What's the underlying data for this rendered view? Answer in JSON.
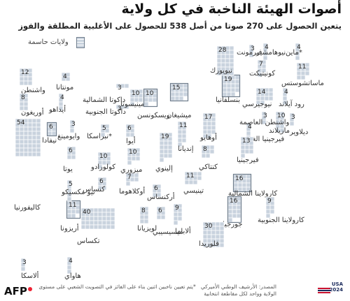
{
  "title": "أصوات الهيئة الناخبة في كل ولاية",
  "subtitle": "يتعين الحصول على 270 صوتا من أصل 538 للحصول على الأغلبية المطلقة والفوز",
  "legend": {
    "swing_label": "ولايات حاسمة"
  },
  "footnote": "*يتم تعيين ناخبين اثنين بناء على الفائز في التصويت الشعبي على مستوى الولاية وواحد لكل مقاطعة انتخابية",
  "source": "المصدر: الأرشيف الوطني الأميركي",
  "credit": "AFP",
  "logo_text": [
    "USA",
    "2024"
  ],
  "colors": {
    "block": "#c9d3de",
    "swing_outline": "#6f7d8c"
  },
  "states": [
    {
      "id": "washington",
      "name": "واشنطن",
      "votes": 12
    },
    {
      "id": "oregon",
      "name": "أوريغون",
      "votes": 8
    },
    {
      "id": "california",
      "name": "كاليفورنيا",
      "votes": 54
    },
    {
      "id": "idaho",
      "name": "أيداهو",
      "votes": 4
    },
    {
      "id": "nevada",
      "name": "نيفادا",
      "votes": 6,
      "swing": true
    },
    {
      "id": "montana",
      "name": "مونتانا",
      "votes": 4
    },
    {
      "id": "wyoming",
      "name": "وايومينغ",
      "votes": 3
    },
    {
      "id": "utah",
      "name": "يوتا",
      "votes": 6
    },
    {
      "id": "arizona",
      "name": "أريزونا",
      "votes": 11,
      "swing": true
    },
    {
      "id": "colorado",
      "name": "كولورادو",
      "votes": 10
    },
    {
      "id": "new_mexico",
      "name": "نيو مكسيكو",
      "votes": 5
    },
    {
      "id": "north_dakota",
      "name": "داكوتا الشمالية",
      "votes": 3
    },
    {
      "id": "south_dakota",
      "name": "داكوتا الجنوبية",
      "votes": 3
    },
    {
      "id": "nebraska",
      "name": "نبراسكا*",
      "votes": 5
    },
    {
      "id": "kansas",
      "name": "كنساس",
      "votes": 6
    },
    {
      "id": "oklahoma",
      "name": "أوكلاهوما",
      "votes": 7
    },
    {
      "id": "texas",
      "name": "تكساس",
      "votes": 40
    },
    {
      "id": "minnesota",
      "name": "مينيسوتا",
      "votes": 10
    },
    {
      "id": "iowa",
      "name": "أيوا",
      "votes": 6
    },
    {
      "id": "missouri",
      "name": "ميزوري",
      "votes": 10
    },
    {
      "id": "arkansas",
      "name": "أركنساس",
      "votes": 6
    },
    {
      "id": "louisiana",
      "name": "لويزيانا",
      "votes": 8
    },
    {
      "id": "wisconsin",
      "name": "ويسكونسن",
      "votes": 10,
      "swing": true
    },
    {
      "id": "illinois",
      "name": "إلينوي",
      "votes": 19
    },
    {
      "id": "mississippi",
      "name": "ميسيسيبي",
      "votes": 6
    },
    {
      "id": "michigan",
      "name": "ميشيغان",
      "votes": 15,
      "swing": true
    },
    {
      "id": "indiana",
      "name": "إنديانا",
      "votes": 11
    },
    {
      "id": "kentucky",
      "name": "كنتاكي",
      "votes": 8
    },
    {
      "id": "tennessee",
      "name": "تينيسي",
      "votes": 11
    },
    {
      "id": "alabama",
      "name": "ألاباما",
      "votes": 9
    },
    {
      "id": "ohio",
      "name": "أوهايو",
      "votes": 17
    },
    {
      "id": "georgia",
      "name": "جورجيا",
      "votes": 16,
      "swing": true
    },
    {
      "id": "florida",
      "name": "فلوريدا",
      "votes": 30
    },
    {
      "id": "west_virginia",
      "name": "فيرجينيا الغربية",
      "votes": 4
    },
    {
      "id": "virginia",
      "name": "فيرجينيا",
      "votes": 13
    },
    {
      "id": "north_carolina",
      "name": "كارولاينا الشمالية",
      "votes": 16,
      "swing": true
    },
    {
      "id": "south_carolina",
      "name": "كارولاينا الجنوبية",
      "votes": 9
    },
    {
      "id": "pennsylvania",
      "name": "بنسلفانيا",
      "votes": 19,
      "swing": true
    },
    {
      "id": "new_york",
      "name": "نيويورك",
      "votes": 28
    },
    {
      "id": "new_jersey",
      "name": "نيوجيرسي",
      "votes": 14
    },
    {
      "id": "delaware",
      "name": "ديلاوير",
      "votes": 3
    },
    {
      "id": "maryland",
      "name": "ماريلاند",
      "votes": 10
    },
    {
      "id": "dc",
      "name": "واشنطن العاصمة",
      "votes": 3
    },
    {
      "id": "connecticut",
      "name": "كونيتيكت",
      "votes": 7
    },
    {
      "id": "rhode_island",
      "name": "رود آيلاند",
      "votes": 4
    },
    {
      "id": "massachusetts",
      "name": "ماساتشوستس",
      "votes": 11
    },
    {
      "id": "vermont",
      "name": "فيرمونت",
      "votes": 3
    },
    {
      "id": "new_hampshire",
      "name": "نيوهامشير",
      "votes": 4
    },
    {
      "id": "maine",
      "name": "ماين*",
      "votes": 4
    },
    {
      "id": "alaska",
      "name": "ألاسكا",
      "votes": 3
    },
    {
      "id": "hawaii",
      "name": "هاواي",
      "votes": 4
    }
  ]
}
